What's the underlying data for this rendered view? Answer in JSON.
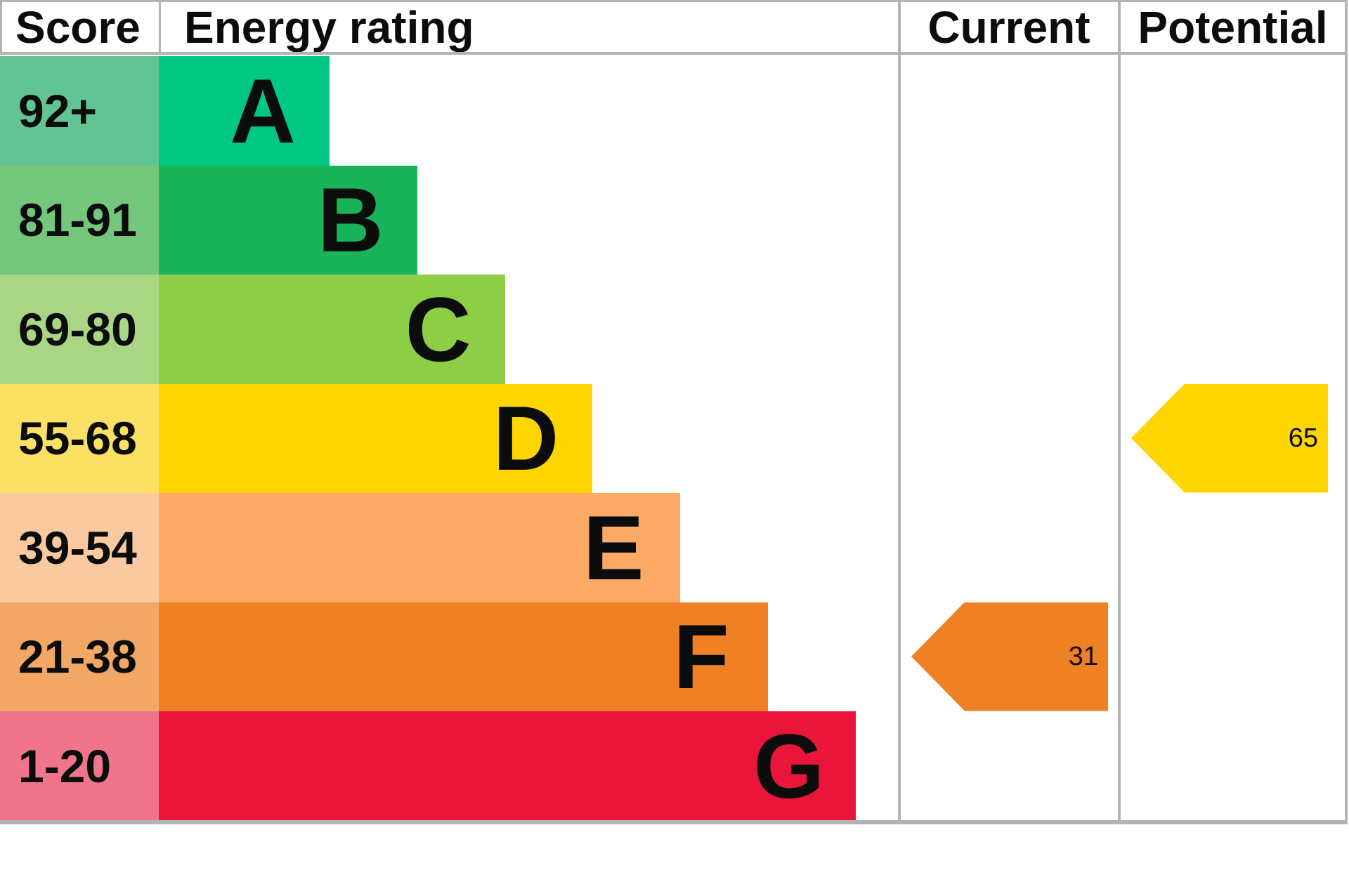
{
  "header": {
    "score": "Score",
    "energy_rating": "Energy rating",
    "current": "Current",
    "potential": "Potential"
  },
  "chart_data": {
    "type": "bar",
    "subtype": "epc-energy-rating-graph",
    "title": "Energy rating",
    "columns": [
      "Score",
      "Energy rating",
      "Current",
      "Potential"
    ],
    "bands": [
      {
        "score_range": "92+",
        "letter": "A",
        "score_cell_color": "#62c493",
        "band_color": "#00c781"
      },
      {
        "score_range": "81-91",
        "letter": "B",
        "score_cell_color": "#74c67c",
        "band_color": "#19b459"
      },
      {
        "score_range": "69-80",
        "letter": "C",
        "score_cell_color": "#aad584",
        "band_color": "#8dce46"
      },
      {
        "score_range": "55-68",
        "letter": "D",
        "score_cell_color": "#fbe163",
        "band_color": "#ffd500"
      },
      {
        "score_range": "39-54",
        "letter": "E",
        "score_cell_color": "#fbc9a0",
        "band_color": "#fcaa65"
      },
      {
        "score_range": "21-38",
        "letter": "F",
        "score_cell_color": "#f2a767",
        "band_color": "#ef8023"
      },
      {
        "score_range": "1-20",
        "letter": "G",
        "score_cell_color": "#f0758a",
        "band_color": "#e9153b"
      }
    ],
    "current": {
      "value": 31,
      "band": "F",
      "color": "#ef8023"
    },
    "potential": {
      "value": 65,
      "band": "D",
      "color": "#ffd500"
    }
  },
  "colors": {
    "border": "#b1b4b6",
    "text": "#0b0c0c",
    "background": "#ffffff"
  }
}
